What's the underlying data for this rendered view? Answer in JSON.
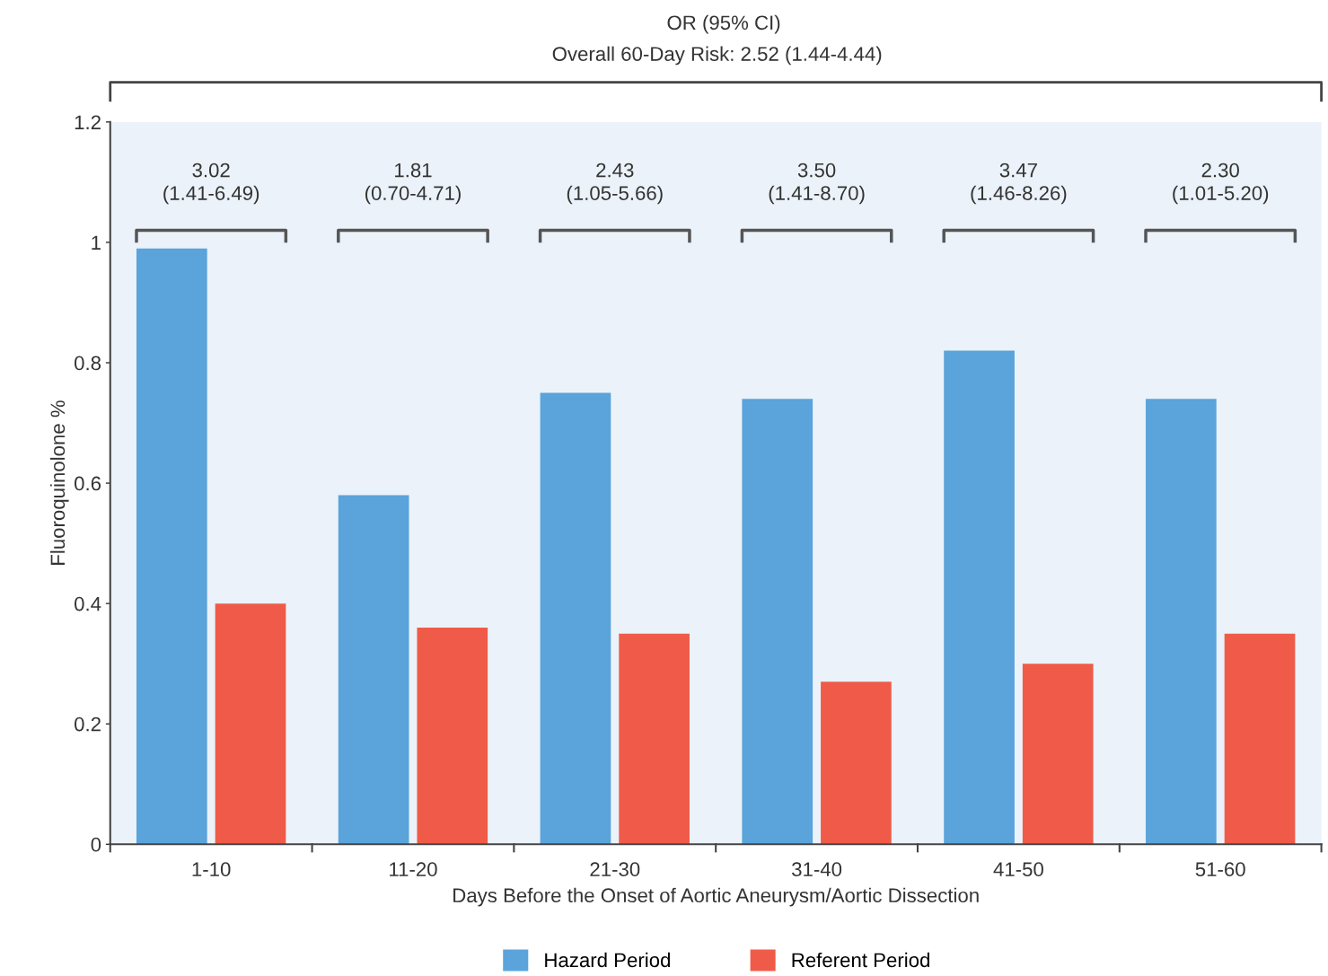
{
  "chart_data": {
    "type": "bar",
    "title": "OR (95% CI)",
    "subtitle": "Overall 60-Day Risk: 2.52 (1.44-4.44)",
    "xlabel": "Days Before the Onset of Aortic Aneurysm/Aortic Dissection",
    "ylabel": "Fluoroquinolone %",
    "categories": [
      "1-10",
      "11-20",
      "21-30",
      "31-40",
      "41-50",
      "51-60"
    ],
    "series": [
      {
        "name": "Hazard Period",
        "color": "#5aa3db",
        "values": [
          0.99,
          0.58,
          0.75,
          0.74,
          0.82,
          0.74
        ]
      },
      {
        "name": "Referent Period",
        "color": "#ef5b48",
        "values": [
          0.4,
          0.36,
          0.35,
          0.27,
          0.3,
          0.35
        ]
      }
    ],
    "annotations": [
      "3.02\n(1.41-6.49)",
      "1.81\n(0.70-4.71)",
      "2.43\n(1.05-5.66)",
      "3.50\n(1.41-8.70)",
      "3.47\n(1.46-8.26)",
      "2.30\n(1.01-5.20)"
    ],
    "ylim": [
      0,
      1.2
    ],
    "yticks": [
      0,
      0.2,
      0.4,
      0.6,
      0.8,
      1,
      1.2
    ],
    "grid": false,
    "legend": "bottom"
  }
}
